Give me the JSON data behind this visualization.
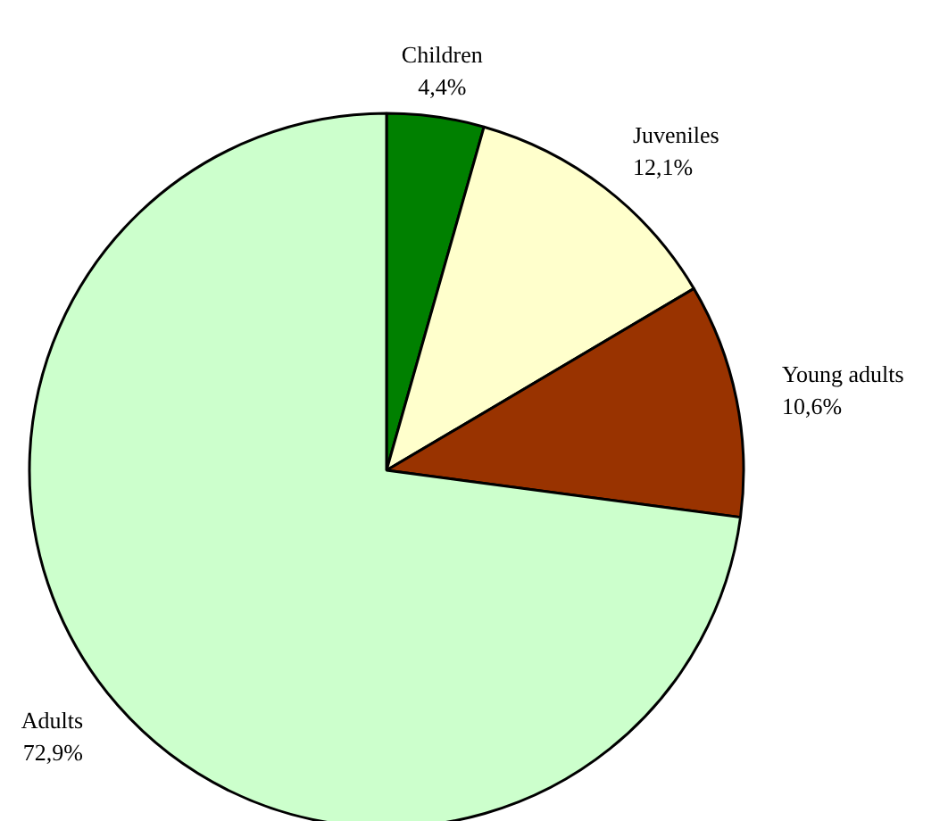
{
  "chart_data": {
    "type": "pie",
    "categories": [
      "Children",
      "Juveniles",
      "Young adults",
      "Adults"
    ],
    "values": [
      4.4,
      12.1,
      10.6,
      72.9
    ],
    "colors": [
      "#008000",
      "#ffffcc",
      "#993300",
      "#ccffcc"
    ],
    "value_labels": [
      "4,4%",
      "12,1%",
      "10,6%",
      "72,9%"
    ],
    "legend": false
  }
}
